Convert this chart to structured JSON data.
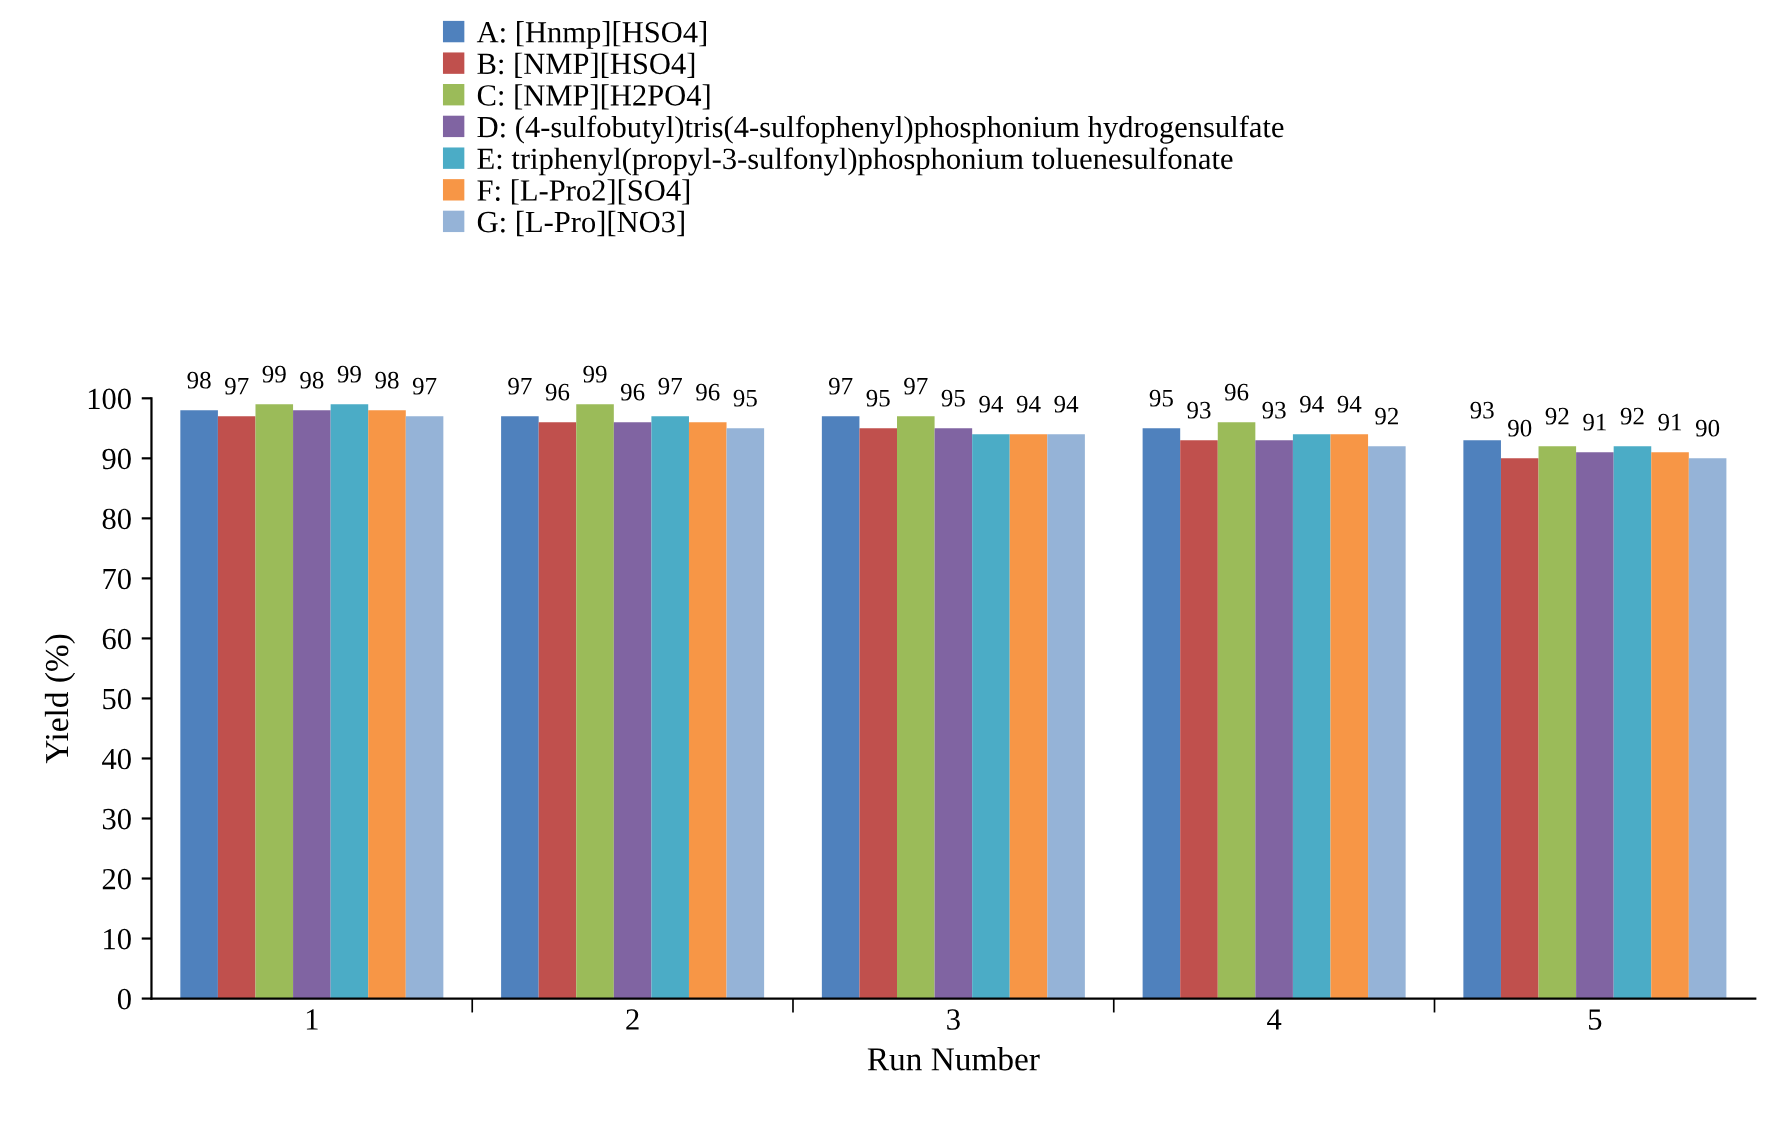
{
  "chart_data": {
    "type": "bar",
    "xlabel": "Run Number",
    "ylabel": "Yield (%)",
    "categories": [
      "1",
      "2",
      "3",
      "4",
      "5"
    ],
    "series": [
      {
        "name": "A: [Hnmp][HSO4]",
        "color": "#4f81bd",
        "values": [
          98,
          97,
          97,
          95,
          93
        ]
      },
      {
        "name": "B: [NMP][HSO4]",
        "color": "#c0504d",
        "values": [
          97,
          96,
          95,
          93,
          90
        ]
      },
      {
        "name": "C: [NMP][H2PO4]",
        "color": "#9bbb59",
        "values": [
          99,
          99,
          97,
          96,
          92
        ]
      },
      {
        "name": "D: (4-sulfobutyl)tris(4-sulfophenyl)phosphonium hydrogensulfate",
        "color": "#8064a2",
        "values": [
          98,
          96,
          95,
          93,
          91
        ]
      },
      {
        "name": "E: triphenyl(propyl-3-sulfonyl)phosphonium toluenesulfonate",
        "color": "#4bacc6",
        "values": [
          99,
          97,
          94,
          94,
          92
        ]
      },
      {
        "name": "F: [L-Pro2][SO4]",
        "color": "#f79646",
        "values": [
          98,
          96,
          94,
          94,
          91
        ]
      },
      {
        "name": "G: [L-Pro][NO3]",
        "color": "#95b3d7",
        "values": [
          97,
          95,
          94,
          92,
          90
        ]
      }
    ],
    "ylim": [
      0,
      100
    ],
    "yticks": [
      0,
      10,
      20,
      30,
      40,
      50,
      60,
      70,
      80,
      90,
      100
    ],
    "grid": false,
    "legend": "top",
    "data_labels": true
  }
}
